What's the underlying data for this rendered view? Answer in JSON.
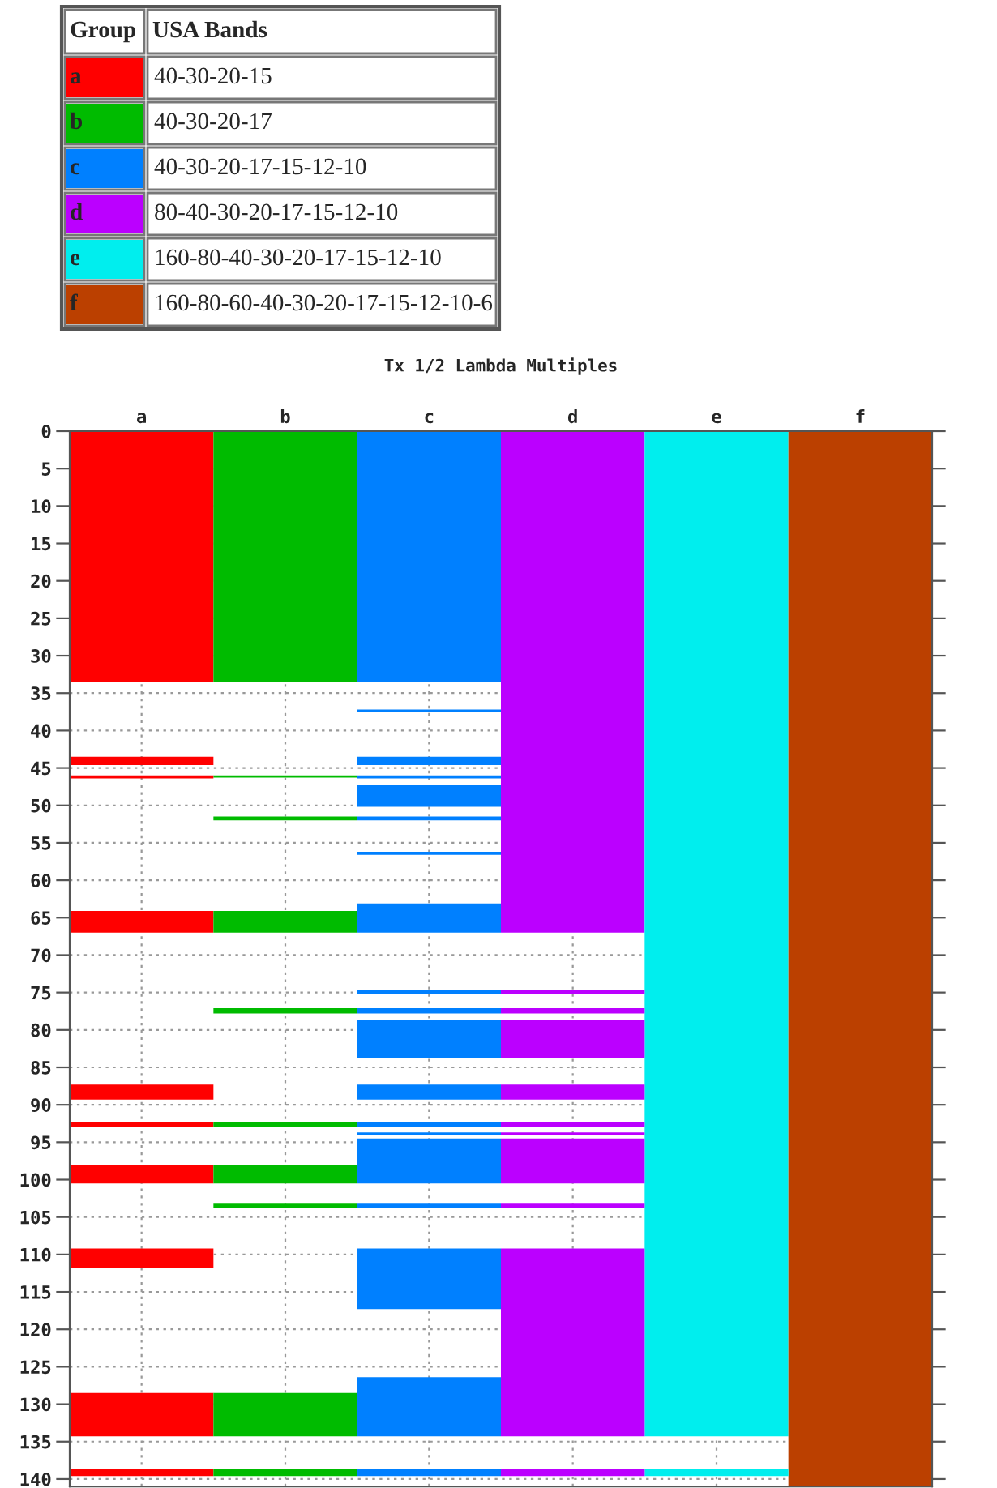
{
  "chart_data": {
    "type": "bar",
    "title": "Tx 1/2 Lambda Multiples",
    "categories": [
      "a",
      "b",
      "c",
      "d",
      "e",
      "f"
    ],
    "annotations": [
      "Group",
      "USA Bands",
      "40-30-20-15",
      "40-30-20-17",
      "40-30-20-17-15-12-10",
      "80-40-30-20-17-15-12-10",
      "160-80-40-30-20-17-15-12-10",
      "160-80-60-40-30-20-17-15-12-10-6"
    ],
    "series": [
      {
        "colors": [
          "#ff0000",
          "#00bb00",
          "#0080ff",
          "#bb00ff",
          "#00eeee",
          "#bb4000"
        ],
        "base": [
          0,
          0,
          0,
          0,
          0,
          0
        ],
        "values": [
          33.5,
          33.5,
          33.5,
          67.0,
          134.3,
          141
        ]
      },
      {
        "colors": [
          "#ff0000",
          "#00bb00",
          "#0080ff",
          "#bb00ff",
          "#00eeee",
          null
        ],
        "base": [
          43.5,
          46.0,
          37.2,
          74.7,
          138.7,
          null
        ],
        "values": [
          1.1,
          0.3,
          0.3,
          0.5,
          0.9,
          null
        ]
      },
      {
        "colors": [
          "#ff0000",
          "#00bb00",
          "#0080ff",
          "#bb00ff",
          null,
          null
        ],
        "base": [
          46.0,
          51.5,
          43.5,
          77.1,
          null,
          null
        ],
        "values": [
          0.4,
          0.5,
          1.1,
          0.7,
          null,
          null
        ]
      },
      {
        "colors": [
          "#ff0000",
          "#00bb00",
          "#0080ff",
          "#bb00ff",
          null,
          null
        ],
        "base": [
          64.1,
          64.1,
          46.0,
          78.7,
          null,
          null
        ],
        "values": [
          2.9,
          2.9,
          0.4,
          5.0,
          null,
          null
        ]
      },
      {
        "colors": [
          "#ff0000",
          "#00bb00",
          "#0080ff",
          "#bb00ff",
          null,
          null
        ],
        "base": [
          87.3,
          77.1,
          47.2,
          87.3,
          null,
          null
        ],
        "values": [
          2.0,
          0.7,
          3.0,
          2.0,
          null,
          null
        ]
      },
      {
        "colors": [
          "#ff0000",
          "#00bb00",
          "#0080ff",
          "#bb00ff",
          null,
          null
        ],
        "base": [
          92.3,
          92.3,
          51.5,
          92.3,
          null,
          null
        ],
        "values": [
          0.6,
          0.6,
          0.5,
          0.6,
          null,
          null
        ]
      },
      {
        "colors": [
          "#ff0000",
          "#00bb00",
          "#0080ff",
          "#bb00ff",
          null,
          null
        ],
        "base": [
          98.0,
          98.0,
          56.2,
          93.7,
          null,
          null
        ],
        "values": [
          2.5,
          2.5,
          0.4,
          0.4,
          null,
          null
        ]
      },
      {
        "colors": [
          "#ff0000",
          "#00bb00",
          "#0080ff",
          "#bb00ff",
          null,
          null
        ],
        "base": [
          109.2,
          103.1,
          63.1,
          94.5,
          null,
          null
        ],
        "values": [
          2.6,
          0.7,
          3.9,
          6.0,
          null,
          null
        ]
      },
      {
        "colors": [
          "#ff0000",
          "#00bb00",
          "#0080ff",
          "#bb00ff",
          null,
          null
        ],
        "base": [
          128.5,
          128.5,
          74.7,
          103.1,
          null,
          null
        ],
        "values": [
          5.8,
          5.8,
          0.5,
          0.7,
          null,
          null
        ]
      },
      {
        "colors": [
          "#ff0000",
          "#00bb00",
          "#0080ff",
          "#bb00ff",
          null,
          null
        ],
        "base": [
          138.7,
          138.7,
          77.1,
          109.2,
          null,
          null
        ],
        "values": [
          0.9,
          0.9,
          0.7,
          25.1,
          null,
          null
        ]
      },
      {
        "colors": [
          null,
          null,
          "#0080ff",
          "#bb00ff",
          null,
          null
        ],
        "base": [
          null,
          null,
          78.7,
          138.7,
          null,
          null
        ],
        "values": [
          null,
          null,
          5.0,
          0.9,
          null,
          null
        ]
      },
      {
        "color": "#0080ff",
        "base": [
          null,
          null,
          87.3,
          null,
          null,
          null
        ],
        "values": [
          null,
          null,
          2.0,
          null,
          null,
          null
        ]
      },
      {
        "color": "#0080ff",
        "base": [
          null,
          null,
          92.3,
          null,
          null,
          null
        ],
        "values": [
          null,
          null,
          0.6,
          null,
          null,
          null
        ]
      },
      {
        "color": "#0080ff",
        "base": [
          null,
          null,
          93.7,
          null,
          null,
          null
        ],
        "values": [
          null,
          null,
          0.4,
          null,
          null,
          null
        ]
      },
      {
        "color": "#0080ff",
        "base": [
          null,
          null,
          94.5,
          null,
          null,
          null
        ],
        "values": [
          null,
          null,
          6.0,
          null,
          null,
          null
        ]
      },
      {
        "color": "#0080ff",
        "base": [
          null,
          null,
          103.1,
          null,
          null,
          null
        ],
        "values": [
          null,
          null,
          0.7,
          null,
          null,
          null
        ]
      },
      {
        "color": "#0080ff",
        "base": [
          null,
          null,
          109.2,
          null,
          null,
          null
        ],
        "values": [
          null,
          null,
          8.1,
          null,
          null,
          null
        ]
      },
      {
        "color": "#0080ff",
        "base": [
          null,
          null,
          126.4,
          null,
          null,
          null
        ],
        "values": [
          null,
          null,
          7.9,
          null,
          null,
          null
        ]
      },
      {
        "color": "#0080ff",
        "base": [
          null,
          null,
          138.7,
          null,
          null,
          null
        ],
        "values": [
          null,
          null,
          0.9,
          null,
          null,
          null
        ]
      }
    ],
    "ylim": [
      141,
      0
    ],
    "yticks": [
      0,
      5,
      10,
      15,
      20,
      25,
      30,
      35,
      40,
      45,
      50,
      55,
      60,
      65,
      70,
      75,
      80,
      85,
      90,
      95,
      100,
      105,
      110,
      115,
      120,
      125,
      130,
      135,
      140
    ],
    "grid": true
  }
}
